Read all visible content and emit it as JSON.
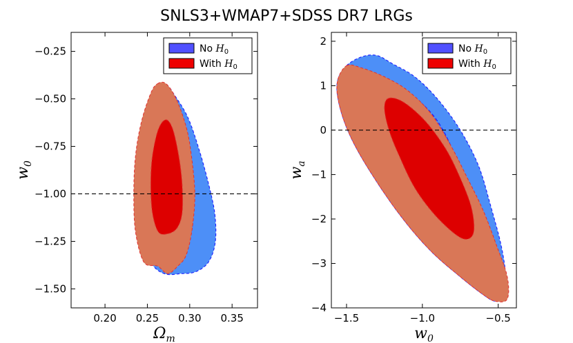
{
  "figure": {
    "title": "SNLS3+WMAP7+SDSS DR7 LRGs"
  },
  "legend_labels": {
    "no_h0_prefix": "No ",
    "with_h0_prefix": "With ",
    "h0_symbol": "H",
    "h0_subscript": "0"
  },
  "chart_data": [
    {
      "type": "contour",
      "panel": "left",
      "xlabel": "Ωm",
      "xlabel_symbol": "Ω",
      "xlabel_subscript": "m",
      "ylabel": "w0",
      "ylabel_symbol": "w",
      "ylabel_subscript": "0",
      "xlim": [
        0.16,
        0.38
      ],
      "ylim": [
        -1.6,
        -0.15
      ],
      "xticks": [
        0.2,
        0.25,
        0.3,
        0.35
      ],
      "xtick_labels": [
        "0.20",
        "0.25",
        "0.30",
        "0.35"
      ],
      "yticks": [
        -1.5,
        -1.25,
        -1.0,
        -0.75,
        -0.5,
        -0.25
      ],
      "ytick_labels": [
        "−1.50",
        "−1.25",
        "−1.00",
        "−0.75",
        "−0.50",
        "−0.25"
      ],
      "reference_line": {
        "orientation": "horizontal",
        "value": -1.0,
        "style": "dashed"
      },
      "legend": {
        "position": "upper right",
        "entries": [
          "No H0",
          "With H0"
        ]
      },
      "series": [
        {
          "name": "No H0",
          "level": "2sigma",
          "color": "#4d8ff7",
          "style": "filled-dashed-outline",
          "outline": [
            [
              0.272,
              -0.43
            ],
            [
              0.282,
              -0.48
            ],
            [
              0.298,
              -0.6
            ],
            [
              0.312,
              -0.78
            ],
            [
              0.324,
              -0.98
            ],
            [
              0.33,
              -1.12
            ],
            [
              0.33,
              -1.26
            ],
            [
              0.322,
              -1.36
            ],
            [
              0.307,
              -1.41
            ],
            [
              0.29,
              -1.42
            ],
            [
              0.27,
              -1.42
            ],
            [
              0.254,
              -1.36
            ],
            [
              0.24,
              -1.2
            ],
            [
              0.235,
              -1.0
            ],
            [
              0.237,
              -0.8
            ],
            [
              0.246,
              -0.62
            ],
            [
              0.258,
              -0.48
            ]
          ]
        },
        {
          "name": "No H0",
          "level": "1sigma",
          "color": "#1a1aff",
          "style": "dashed-outline",
          "outline": [
            [
              0.284,
              -0.65
            ],
            [
              0.295,
              -0.75
            ],
            [
              0.303,
              -0.95
            ],
            [
              0.304,
              -1.12
            ],
            [
              0.3,
              -1.23
            ],
            [
              0.29,
              -1.27
            ],
            [
              0.276,
              -1.27
            ],
            [
              0.263,
              -1.22
            ],
            [
              0.256,
              -1.05
            ],
            [
              0.257,
              -0.85
            ],
            [
              0.265,
              -0.7
            ],
            [
              0.275,
              -0.64
            ]
          ]
        },
        {
          "name": "With H0",
          "level": "2sigma",
          "color": "#d97757",
          "style": "filled",
          "outline": [
            [
              0.262,
              -0.42
            ],
            [
              0.272,
              -0.42
            ],
            [
              0.284,
              -0.5
            ],
            [
              0.296,
              -0.65
            ],
            [
              0.302,
              -0.8
            ],
            [
              0.306,
              -1.0
            ],
            [
              0.303,
              -1.18
            ],
            [
              0.296,
              -1.32
            ],
            [
              0.286,
              -1.38
            ],
            [
              0.274,
              -1.42
            ],
            [
              0.262,
              -1.38
            ],
            [
              0.246,
              -1.36
            ],
            [
              0.236,
              -1.2
            ],
            [
              0.234,
              -1.0
            ],
            [
              0.236,
              -0.8
            ],
            [
              0.243,
              -0.62
            ],
            [
              0.254,
              -0.47
            ]
          ]
        },
        {
          "name": "With H0",
          "level": "1sigma",
          "color": "#dd0000",
          "style": "filled",
          "outline": [
            [
              0.272,
              -0.61
            ],
            [
              0.28,
              -0.66
            ],
            [
              0.287,
              -0.8
            ],
            [
              0.291,
              -0.95
            ],
            [
              0.291,
              -1.1
            ],
            [
              0.285,
              -1.18
            ],
            [
              0.274,
              -1.21
            ],
            [
              0.263,
              -1.2
            ],
            [
              0.256,
              -1.1
            ],
            [
              0.254,
              -0.95
            ],
            [
              0.256,
              -0.8
            ],
            [
              0.263,
              -0.66
            ]
          ]
        }
      ]
    },
    {
      "type": "contour",
      "panel": "right",
      "xlabel": "w0",
      "xlabel_symbol": "w",
      "xlabel_subscript": "0",
      "ylabel": "wa",
      "ylabel_symbol": "w",
      "ylabel_subscript": "a",
      "xlim": [
        -1.6,
        -0.38
      ],
      "ylim": [
        -4,
        2.2
      ],
      "xticks": [
        -1.5,
        -1.0,
        -0.5
      ],
      "xtick_labels": [
        "−1.5",
        "−1.0",
        "−0.5"
      ],
      "yticks": [
        -4,
        -3,
        -2,
        -1,
        0,
        1,
        2
      ],
      "ytick_labels": [
        "−4",
        "−3",
        "−2",
        "−1",
        "0",
        "1",
        "2"
      ],
      "reference_line": {
        "orientation": "horizontal",
        "value": 0,
        "style": "dashed"
      },
      "legend": {
        "position": "upper right",
        "entries": [
          "No H0",
          "With H0"
        ]
      },
      "series": [
        {
          "name": "No H0",
          "level": "2sigma",
          "color": "#4d8ff7",
          "style": "filled-dashed-outline",
          "outline": [
            [
              -1.5,
              1.45
            ],
            [
              -1.4,
              1.65
            ],
            [
              -1.3,
              1.68
            ],
            [
              -1.2,
              1.5
            ],
            [
              -1.05,
              1.2
            ],
            [
              -0.9,
              0.7
            ],
            [
              -0.75,
              0.0
            ],
            [
              -0.63,
              -0.8
            ],
            [
              -0.55,
              -1.7
            ],
            [
              -0.48,
              -2.6
            ],
            [
              -0.45,
              -3.3
            ],
            [
              -0.46,
              -3.75
            ],
            [
              -0.52,
              -3.85
            ],
            [
              -0.6,
              -3.7
            ],
            [
              -0.75,
              -3.3
            ],
            [
              -0.95,
              -2.7
            ],
            [
              -1.15,
              -1.9
            ],
            [
              -1.35,
              -0.9
            ],
            [
              -1.48,
              -0.1
            ],
            [
              -1.55,
              0.6
            ],
            [
              -1.56,
              1.1
            ]
          ]
        },
        {
          "name": "No H0",
          "level": "1sigma",
          "color": "#1a1aff",
          "style": "dashed-outline",
          "outline": [
            [
              -1.27,
              1.05
            ],
            [
              -1.16,
              0.95
            ],
            [
              -1.02,
              0.65
            ],
            [
              -0.9,
              0.2
            ],
            [
              -0.8,
              -0.45
            ],
            [
              -0.74,
              -1.1
            ],
            [
              -0.71,
              -1.7
            ],
            [
              -0.74,
              -1.98
            ],
            [
              -0.8,
              -1.95
            ],
            [
              -0.92,
              -1.6
            ],
            [
              -1.05,
              -1.0
            ],
            [
              -1.18,
              -0.3
            ],
            [
              -1.27,
              0.4
            ],
            [
              -1.31,
              0.85
            ]
          ]
        },
        {
          "name": "With H0",
          "level": "2sigma",
          "color": "#d97757",
          "style": "filled",
          "outline": [
            [
              -1.5,
              1.45
            ],
            [
              -1.4,
              1.4
            ],
            [
              -1.25,
              1.2
            ],
            [
              -1.1,
              0.9
            ],
            [
              -0.95,
              0.4
            ],
            [
              -0.82,
              -0.3
            ],
            [
              -0.7,
              -1.1
            ],
            [
              -0.6,
              -1.8
            ],
            [
              -0.51,
              -2.6
            ],
            [
              -0.44,
              -3.3
            ],
            [
              -0.44,
              -3.8
            ],
            [
              -0.52,
              -3.85
            ],
            [
              -0.6,
              -3.7
            ],
            [
              -0.75,
              -3.3
            ],
            [
              -0.95,
              -2.7
            ],
            [
              -1.15,
              -1.9
            ],
            [
              -1.35,
              -0.9
            ],
            [
              -1.48,
              -0.1
            ],
            [
              -1.55,
              0.6
            ],
            [
              -1.56,
              1.1
            ]
          ]
        },
        {
          "name": "With H0",
          "level": "1sigma",
          "color": "#dd0000",
          "style": "filled",
          "outline": [
            [
              -1.22,
              0.72
            ],
            [
              -1.12,
              0.62
            ],
            [
              -0.98,
              0.2
            ],
            [
              -0.85,
              -0.4
            ],
            [
              -0.76,
              -1.0
            ],
            [
              -0.68,
              -1.7
            ],
            [
              -0.66,
              -2.25
            ],
            [
              -0.7,
              -2.45
            ],
            [
              -0.78,
              -2.35
            ],
            [
              -0.92,
              -1.9
            ],
            [
              -1.05,
              -1.3
            ],
            [
              -1.15,
              -0.6
            ],
            [
              -1.22,
              0.0
            ],
            [
              -1.25,
              0.5
            ]
          ]
        }
      ]
    }
  ]
}
